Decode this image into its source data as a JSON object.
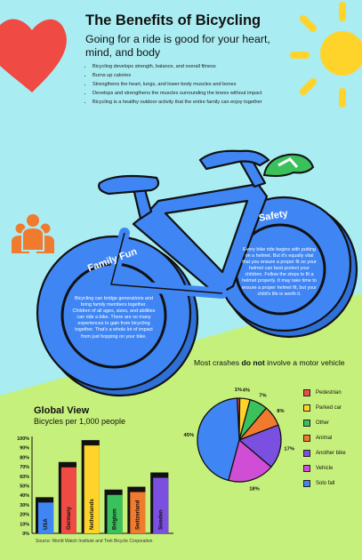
{
  "header": {
    "title": "The Benefits of Bicycling",
    "subtitle": "Going for a ride is good for your heart, mind, and body",
    "benefits": [
      "Bicycling develops strength, balance, and overall fitness",
      "Burns up calories",
      "Strengthens the heart, lungs, and lower-body muscles and bones",
      "Develops and strengthens the muscles surrounding the knees without impact",
      "Bicycling is a healthy outdoor activity that the entire family can enjoy together"
    ]
  },
  "family_fun": {
    "title": "Family Fun",
    "text": "Bicycling can bridge generations and bring family members together. Children of all ages, sizes, and abilities can ride a bike. There are so many experiences to gain from bicycling together. That's a whole lot of impact from just hopping on your bike."
  },
  "safety": {
    "title": "Safety",
    "text": "Every bike ride begins with putting on a helmet. But it's equally vital that you ensure a proper fit so your helmet can best protect your children. Follow the steps to fit a helmet properly. It may take time to ensure a proper helmet fit, but your child's life is worth it."
  },
  "colors": {
    "sky": "#a9ecf2",
    "grass": "#c6f07c",
    "bike_blue": "#3f86f4",
    "outline": "#111111",
    "heart": "#ef4a43",
    "sun": "#ffd42a",
    "family_icon": "#f07a2e",
    "helmet": "#3bc15b"
  },
  "icons": [
    "heart-icon",
    "sun-icon",
    "bicycle-icon",
    "family-icon",
    "helmet-icon"
  ],
  "source": "Source: World Watch Institute and Trek Bicycle Corporation",
  "chart_data": [
    {
      "type": "bar",
      "title": "Global View",
      "subtitle": "Bicycles per 1,000 people",
      "categories": [
        "USA",
        "Germany",
        "Netherlands",
        "Belgium",
        "Switzerland",
        "Sweden"
      ],
      "values": [
        38,
        75,
        98,
        46,
        49,
        64
      ],
      "bar_colors": [
        "#3f86f4",
        "#ef4a43",
        "#ffd42a",
        "#3bc15b",
        "#f07a2e",
        "#7b4fe0"
      ],
      "y_ticks": [
        "0%",
        "10%",
        "20%",
        "30%",
        "40%",
        "50%",
        "60%",
        "70%",
        "80%",
        "90%",
        "100%"
      ],
      "ylim": [
        0,
        100
      ]
    },
    {
      "type": "pie",
      "title_prefix": "Most crashes ",
      "title_bold": "do not",
      "title_suffix": " involve a motor vehicle",
      "slices": [
        {
          "label": "Pedestrian",
          "value": 1,
          "display": "1%",
          "color": "#ef4a43"
        },
        {
          "label": "Parked car",
          "value": 4,
          "display": "4%",
          "color": "#ffd42a"
        },
        {
          "label": "Other",
          "value": 7,
          "display": "7%",
          "color": "#3bc15b"
        },
        {
          "label": "Animal",
          "value": 8,
          "display": "8%",
          "color": "#f07a2e"
        },
        {
          "label": "Another bike",
          "value": 17,
          "display": "17%",
          "color": "#7b4fe0"
        },
        {
          "label": "Vehicle",
          "value": 18,
          "display": "18%",
          "color": "#d04ed6"
        },
        {
          "label": "Solo fall",
          "value": 45,
          "display": "45%",
          "color": "#3f86f4"
        }
      ],
      "legend_position": "right"
    }
  ]
}
